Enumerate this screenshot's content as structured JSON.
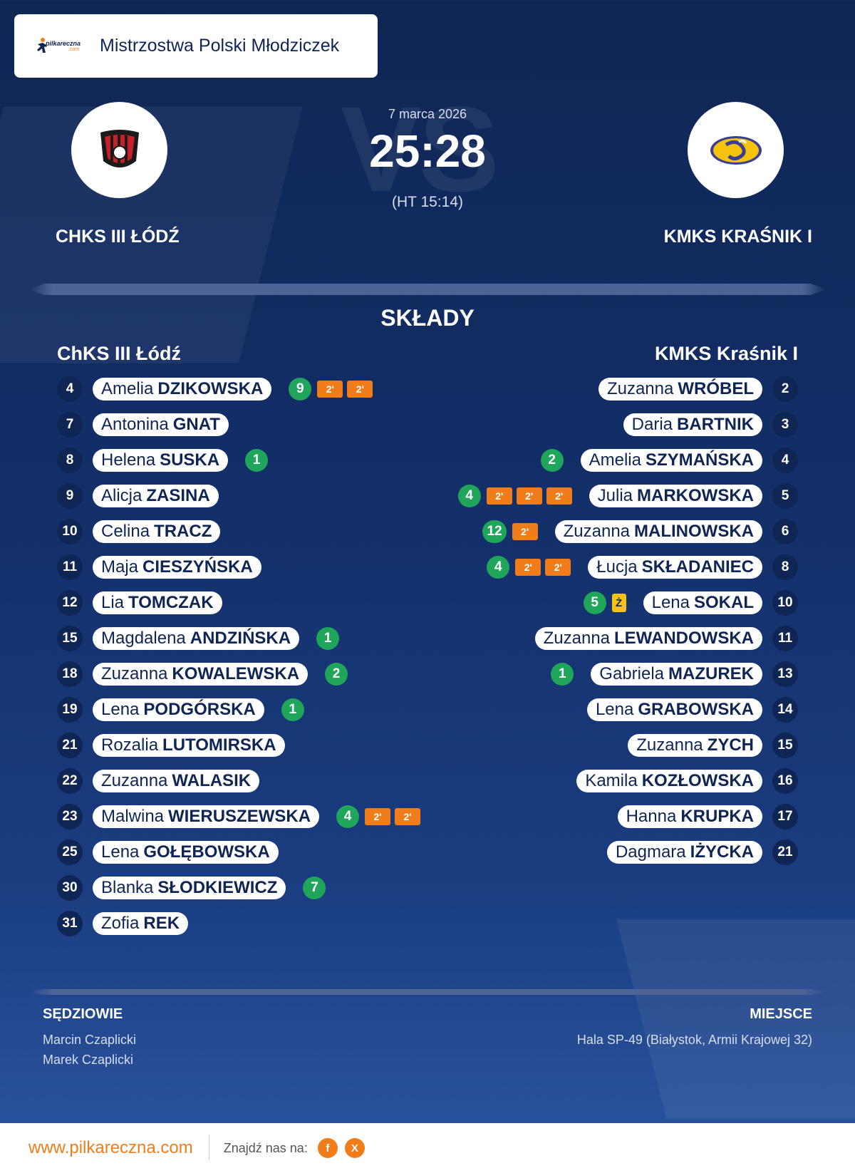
{
  "header": {
    "brand_line1": "pilkareczna",
    "brand_line2": ".com",
    "title": "Mistrzostwa Polski Młodziczek"
  },
  "match": {
    "date": "7 marca 2026",
    "score": "25:28",
    "halftime": "(HT 15:14)",
    "home_name": "CHKS III ŁÓDŹ",
    "away_name": "KMKS KRAŚNIK I",
    "vs": "VS"
  },
  "lineups": {
    "title": "SKŁADY",
    "home_title": "ChKS III Łódź",
    "away_title": "KMKS Kraśnik I",
    "home": [
      {
        "num": "4",
        "first": "Amelia",
        "last": "DZIKOWSKA",
        "goals": "9",
        "pens": [
          "2'",
          "2'"
        ]
      },
      {
        "num": "7",
        "first": "Antonina",
        "last": "GNAT",
        "goals": "",
        "pens": []
      },
      {
        "num": "8",
        "first": "Helena",
        "last": "SUSKA",
        "goals": "1",
        "pens": []
      },
      {
        "num": "9",
        "first": "Alicja",
        "last": "ZASINA",
        "goals": "",
        "pens": []
      },
      {
        "num": "10",
        "first": "Celina",
        "last": "TRACZ",
        "goals": "",
        "pens": []
      },
      {
        "num": "11",
        "first": "Maja",
        "last": "CIESZYŃSKA",
        "goals": "",
        "pens": []
      },
      {
        "num": "12",
        "first": "Lia",
        "last": "TOMCZAK",
        "goals": "",
        "pens": []
      },
      {
        "num": "15",
        "first": "Magdalena",
        "last": "ANDZIŃSKA",
        "goals": "1",
        "pens": []
      },
      {
        "num": "18",
        "first": "Zuzanna",
        "last": "KOWALEWSKA",
        "goals": "2",
        "pens": []
      },
      {
        "num": "19",
        "first": "Lena",
        "last": "PODGÓRSKA",
        "goals": "1",
        "pens": []
      },
      {
        "num": "21",
        "first": "Rozalia",
        "last": "LUTOMIRSKA",
        "goals": "",
        "pens": []
      },
      {
        "num": "22",
        "first": "Zuzanna",
        "last": "WALASIK",
        "goals": "",
        "pens": []
      },
      {
        "num": "23",
        "first": "Malwina",
        "last": "WIERUSZEWSKA",
        "goals": "4",
        "pens": [
          "2'",
          "2'"
        ]
      },
      {
        "num": "25",
        "first": "Lena",
        "last": "GOŁĘBOWSKA",
        "goals": "",
        "pens": []
      },
      {
        "num": "30",
        "first": "Blanka",
        "last": "SŁODKIEWICZ",
        "goals": "7",
        "pens": []
      },
      {
        "num": "31",
        "first": "Zofia",
        "last": "REK",
        "goals": "",
        "pens": []
      }
    ],
    "away": [
      {
        "num": "2",
        "first": "Zuzanna",
        "last": "WRÓBEL",
        "goals": "",
        "pens": [],
        "yellow": ""
      },
      {
        "num": "3",
        "first": "Daria",
        "last": "BARTNIK",
        "goals": "",
        "pens": [],
        "yellow": ""
      },
      {
        "num": "4",
        "first": "Amelia",
        "last": "SZYMAŃSKA",
        "goals": "2",
        "pens": [],
        "yellow": ""
      },
      {
        "num": "5",
        "first": "Julia",
        "last": "MARKOWSKA",
        "goals": "4",
        "pens": [
          "2'",
          "2'",
          "2'"
        ],
        "yellow": ""
      },
      {
        "num": "6",
        "first": "Zuzanna",
        "last": "MALINOWSKA",
        "goals": "12",
        "pens": [
          "2'"
        ],
        "yellow": ""
      },
      {
        "num": "8",
        "first": "Łucja",
        "last": "SKŁADANIEC",
        "goals": "4",
        "pens": [
          "2'",
          "2'"
        ],
        "yellow": ""
      },
      {
        "num": "10",
        "first": "Lena",
        "last": "SOKAL",
        "goals": "5",
        "pens": [],
        "yellow": "Ż"
      },
      {
        "num": "11",
        "first": "Zuzanna",
        "last": "LEWANDOWSKA",
        "goals": "",
        "pens": [],
        "yellow": ""
      },
      {
        "num": "13",
        "first": "Gabriela",
        "last": "MAZUREK",
        "goals": "1",
        "pens": [],
        "yellow": ""
      },
      {
        "num": "14",
        "first": "Lena",
        "last": "GRABOWSKA",
        "goals": "",
        "pens": [],
        "yellow": ""
      },
      {
        "num": "15",
        "first": "Zuzanna",
        "last": "ZYCH",
        "goals": "",
        "pens": [],
        "yellow": ""
      },
      {
        "num": "16",
        "first": "Kamila",
        "last": "KOZŁOWSKA",
        "goals": "",
        "pens": [],
        "yellow": ""
      },
      {
        "num": "17",
        "first": "Hanna",
        "last": "KRUPKA",
        "goals": "",
        "pens": [],
        "yellow": ""
      },
      {
        "num": "21",
        "first": "Dagmara",
        "last": "IŻYCKA",
        "goals": "",
        "pens": [],
        "yellow": ""
      }
    ]
  },
  "officials": {
    "label": "SĘDZIOWIE",
    "names": [
      "Marcin Czaplicki",
      "Marek Czaplicki"
    ]
  },
  "venue": {
    "label": "MIEJSCE",
    "value": "Hala SP-49 (Białystok, Armii Krajowej 32)"
  },
  "footer": {
    "site": "www.pilkareczna.com",
    "find_us": "Znajdź nas na:",
    "facebook": "f",
    "x": "X"
  },
  "colors": {
    "navy": "#0f2554",
    "goal_green": "#1fa65a",
    "penalty_orange": "#f07d1a",
    "yellow_card": "#f5c20e"
  },
  "icons": {
    "brand": "handball-player-logo-icon",
    "home_crest": "chks-crest-icon",
    "away_crest": "kmks-crest-icon"
  }
}
